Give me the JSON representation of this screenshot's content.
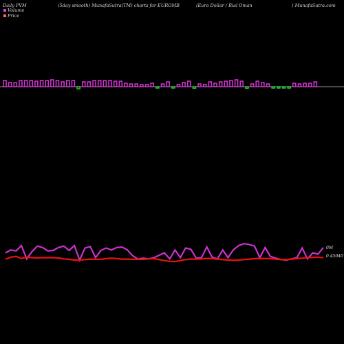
{
  "header": {
    "left": "Daily PVM",
    "smooth": "(5day smooth) MunafaSutra(TM) charts for EUROMB",
    "pair": "(Euro  Dollar / Rial Oman",
    "site": ") MunafaSutra.com"
  },
  "legend": {
    "volume_label": "Volume",
    "price_label": "Price",
    "volume_color": "#e040e0",
    "price_color": "#ff7043"
  },
  "colors": {
    "background": "#000000",
    "volume_up": "#cc33cc",
    "volume_down": "#33bb33",
    "baseline": "#c8c8c8",
    "volume_line": "#cc33cc",
    "price_line": "#ee1111"
  },
  "chart_data": [
    {
      "type": "bar",
      "series": [
        {
          "values": [
            9,
            6,
            6,
            9,
            9,
            9,
            8,
            9,
            9,
            10,
            9,
            7,
            9,
            9,
            7,
            7,
            7,
            9,
            9,
            9,
            9,
            8,
            8,
            5,
            4,
            4,
            3,
            3,
            5,
            3,
            4,
            7,
            4,
            3,
            6,
            8,
            5,
            4,
            3,
            7,
            5,
            7,
            8,
            9,
            10,
            8,
            5,
            4,
            8,
            6,
            4,
            3,
            4,
            4,
            3,
            5,
            4,
            5,
            5,
            7
          ],
          "direction": [
            "up",
            "up",
            "up",
            "up",
            "up",
            "up",
            "up",
            "up",
            "up",
            "up",
            "up",
            "up",
            "up",
            "up",
            "down",
            "up",
            "up",
            "up",
            "up",
            "up",
            "up",
            "up",
            "up",
            "up",
            "up",
            "up",
            "up",
            "up",
            "up",
            "down",
            "up",
            "up",
            "down",
            "up",
            "up",
            "up",
            "down",
            "up",
            "up",
            "up",
            "up",
            "up",
            "up",
            "up",
            "up",
            "up",
            "down",
            "up",
            "up",
            "up",
            "up",
            "down",
            "down",
            "down",
            "down",
            "up",
            "up",
            "up",
            "up",
            "up"
          ]
        }
      ]
    },
    {
      "type": "line",
      "y_tick_labels": [
        "0M",
        "0.45040"
      ],
      "series": [
        {
          "values": [
            0.5,
            0.62,
            0.58,
            0.8,
            0.25,
            0.55,
            0.78,
            0.72,
            0.58,
            0.6,
            0.72,
            0.78,
            0.6,
            0.8,
            0.2,
            0.7,
            0.76,
            0.3,
            0.6,
            0.7,
            0.62,
            0.72,
            0.74,
            0.62,
            0.38,
            0.24,
            0.28,
            0.25,
            0.3,
            0.4,
            0.5,
            0.25,
            0.62,
            0.3,
            0.7,
            0.65,
            0.28,
            0.3,
            0.75,
            0.32,
            0.25,
            0.62,
            0.3,
            0.62,
            0.8,
            0.88,
            0.85,
            0.78,
            0.3,
            0.72,
            0.35,
            0.28,
            0.22,
            0.2,
            0.25,
            0.3,
            0.7,
            0.25,
            0.5,
            0.45,
            0.72
          ]
        },
        {
          "values": [
            0.24,
            0.32,
            0.35,
            0.27,
            0.32,
            0.3,
            0.29,
            0.3,
            0.3,
            0.3,
            0.29,
            0.25,
            0.23,
            0.2,
            0.2,
            0.22,
            0.24,
            0.23,
            0.23,
            0.26,
            0.28,
            0.26,
            0.24,
            0.24,
            0.23,
            0.23,
            0.23,
            0.25,
            0.26,
            0.22,
            0.18,
            0.15,
            0.14,
            0.18,
            0.22,
            0.24,
            0.24,
            0.25,
            0.27,
            0.26,
            0.24,
            0.22,
            0.2,
            0.19,
            0.2,
            0.22,
            0.24,
            0.26,
            0.27,
            0.26,
            0.26,
            0.24,
            0.22,
            0.22,
            0.24,
            0.26,
            0.28,
            0.3,
            0.31,
            0.32,
            0.3
          ]
        }
      ]
    }
  ]
}
